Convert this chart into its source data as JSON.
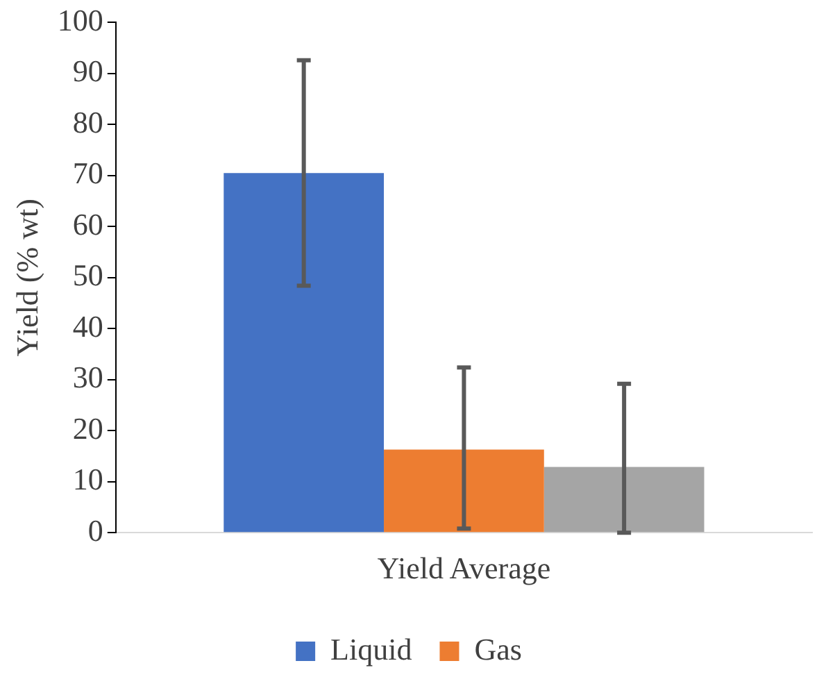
{
  "chart_data": {
    "type": "bar",
    "ylabel": "Yield (% wt)",
    "categories": [
      "Yield Average"
    ],
    "series": [
      {
        "name": "Liquid",
        "color": "#4472c4",
        "values": [
          70.5
        ],
        "errors": [
          [
            48.4,
            92.6
          ]
        ]
      },
      {
        "name": "Gas",
        "color": "#ed7d31",
        "values": [
          16.3
        ],
        "errors": [
          [
            0.8,
            32.4
          ]
        ]
      },
      {
        "color": "#a5a5a5",
        "values": [
          12.9
        ],
        "errors": [
          [
            0,
            29.2
          ]
        ]
      }
    ],
    "ylim": [
      0,
      100
    ],
    "yticks": [
      0,
      10,
      20,
      30,
      40,
      50,
      60,
      70,
      80,
      90,
      100
    ],
    "grid": false,
    "legend": "bottom"
  }
}
